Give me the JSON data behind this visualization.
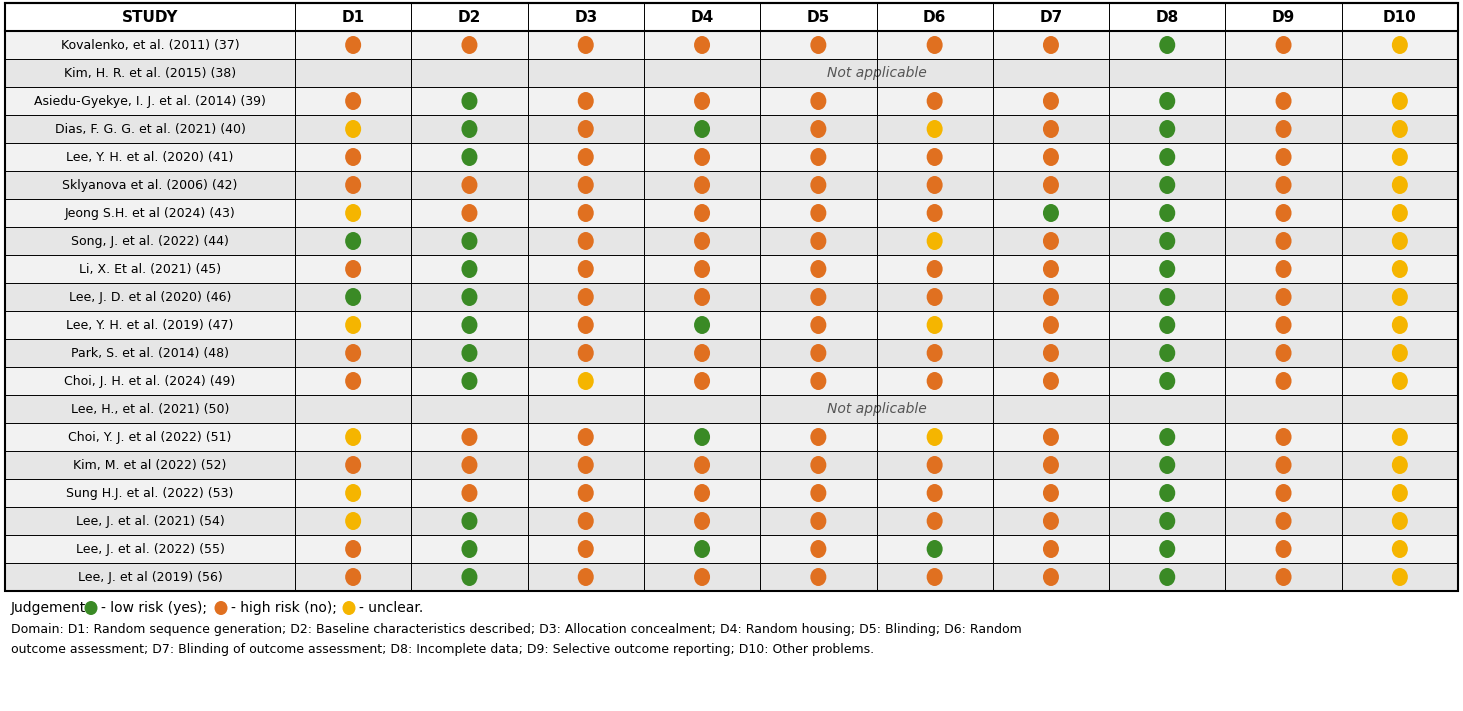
{
  "columns": [
    "STUDY",
    "D1",
    "D2",
    "D3",
    "D4",
    "D5",
    "D6",
    "D7",
    "D8",
    "D9",
    "D10"
  ],
  "studies": [
    "Kovalenko, et al. (2011) (37)",
    "Kim, H. R. et al. (2015) (38)",
    "Asiedu-Gyekye, I. J. et al. (2014) (39)",
    "Dias, F. G. G. et al. (2021) (40)",
    "Lee, Y. H. et al. (2020) (41)",
    "Sklyanova et al. (2006) (42)",
    "Jeong S.H. et al (2024) (43)",
    "Song, J. et al. (2022) (44)",
    "Li, X. Et al. (2021) (45)",
    "Lee, J. D. et al (2020) (46)",
    "Lee, Y. H. et al. (2019) (47)",
    "Park, S. et al. (2014) (48)",
    "Choi, J. H. et al. (2024) (49)",
    "Lee, H., et al. (2021) (50)",
    "Choi, Y. J. et al (2022) (51)",
    "Kim, M. et al (2022) (52)",
    "Sung H.J. et al. (2022) (53)",
    "Lee, J. et al. (2021) (54)",
    "Lee, J. et al. (2022) (55)",
    "Lee, J. et al (2019) (56)"
  ],
  "not_applicable_rows": [
    1,
    13
  ],
  "orange": "#E07020",
  "green": "#3A8A25",
  "yellow": "#F5B500",
  "dot_data": [
    [
      "O",
      "O",
      "O",
      "O",
      "O",
      "O",
      "O",
      "G",
      "O",
      "Y"
    ],
    [
      null,
      null,
      null,
      null,
      null,
      null,
      null,
      null,
      null,
      null
    ],
    [
      "O",
      "G",
      "O",
      "O",
      "O",
      "O",
      "O",
      "G",
      "O",
      "Y"
    ],
    [
      "Y",
      "G",
      "O",
      "G",
      "O",
      "Y",
      "O",
      "G",
      "O",
      "Y"
    ],
    [
      "O",
      "G",
      "O",
      "O",
      "O",
      "O",
      "O",
      "G",
      "O",
      "Y"
    ],
    [
      "O",
      "O",
      "O",
      "O",
      "O",
      "O",
      "O",
      "G",
      "O",
      "Y"
    ],
    [
      "Y",
      "O",
      "O",
      "O",
      "O",
      "O",
      "G",
      "G",
      "O",
      "Y"
    ],
    [
      "G",
      "G",
      "O",
      "O",
      "O",
      "Y",
      "O",
      "G",
      "O",
      "Y"
    ],
    [
      "O",
      "G",
      "O",
      "O",
      "O",
      "O",
      "O",
      "G",
      "O",
      "Y"
    ],
    [
      "G",
      "G",
      "O",
      "O",
      "O",
      "O",
      "O",
      "G",
      "O",
      "Y"
    ],
    [
      "Y",
      "G",
      "O",
      "G",
      "O",
      "Y",
      "O",
      "G",
      "O",
      "Y"
    ],
    [
      "O",
      "G",
      "O",
      "O",
      "O",
      "O",
      "O",
      "G",
      "O",
      "Y"
    ],
    [
      "O",
      "G",
      "Y",
      "O",
      "O",
      "O",
      "O",
      "G",
      "O",
      "Y"
    ],
    [
      null,
      null,
      null,
      null,
      null,
      null,
      null,
      null,
      null,
      null
    ],
    [
      "Y",
      "O",
      "O",
      "G",
      "O",
      "Y",
      "O",
      "G",
      "O",
      "Y"
    ],
    [
      "O",
      "O",
      "O",
      "O",
      "O",
      "O",
      "O",
      "G",
      "O",
      "Y"
    ],
    [
      "Y",
      "O",
      "O",
      "O",
      "O",
      "O",
      "O",
      "G",
      "O",
      "Y"
    ],
    [
      "Y",
      "G",
      "O",
      "O",
      "O",
      "O",
      "O",
      "G",
      "O",
      "Y"
    ],
    [
      "O",
      "G",
      "O",
      "G",
      "O",
      "G",
      "O",
      "G",
      "O",
      "Y"
    ],
    [
      "O",
      "G",
      "O",
      "O",
      "O",
      "O",
      "O",
      "G",
      "O",
      "Y"
    ]
  ],
  "row_bg_even": "#F2F2F2",
  "row_bg_odd": "#E6E6E6",
  "header_bg": "#FFFFFF",
  "legend_line": "Judgement:   - low risk (yes);   - high risk (no);   - unclear.",
  "footnote_line1": "Domain: D1: Random sequence generation; D2: Baseline characteristics described; D3: Allocation concealment; D4: Random housing; D5: Blinding; D6: Random",
  "footnote_line2": "outcome assessment; D7: Blinding of outcome assessment; D8: Incomplete data; D9: Selective outcome reporting; D10: Other problems."
}
